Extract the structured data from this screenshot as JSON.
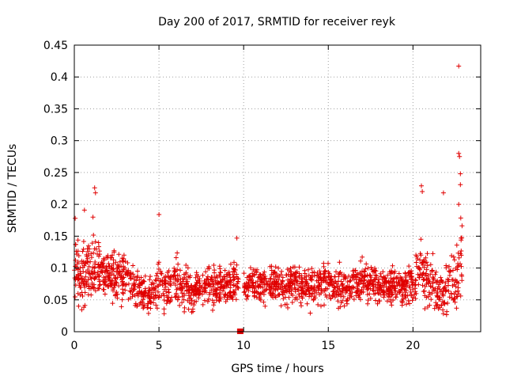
{
  "chart_data": {
    "type": "scatter",
    "title": "Day 200 of 2017, SRMTID for receiver reyk",
    "xlabel": "GPS time / hours",
    "ylabel": "SRMTID / TECUs",
    "xlim": [
      0,
      24
    ],
    "ylim": [
      0,
      0.45
    ],
    "xticks": [
      0,
      5,
      10,
      15,
      20
    ],
    "xtick_labels": [
      "0",
      "5",
      "10",
      "15",
      "20"
    ],
    "yticks": [
      0,
      0.05,
      0.1,
      0.15,
      0.2,
      0.25,
      0.3,
      0.35,
      0.4,
      0.45
    ],
    "ytick_labels": [
      "0",
      "0.05",
      "0.1",
      "0.15",
      "0.2",
      "0.25",
      "0.3",
      "0.35",
      "0.4",
      "0.45"
    ],
    "grid": true,
    "marker": "plus",
    "color": "#e00000",
    "gap_marker": {
      "x": 9.8,
      "y": 0
    },
    "outliers": [
      {
        "x": 22.7,
        "y": 0.417
      },
      {
        "x": 22.7,
        "y": 0.28
      },
      {
        "x": 22.75,
        "y": 0.275
      },
      {
        "x": 22.8,
        "y": 0.248
      },
      {
        "x": 22.8,
        "y": 0.231
      },
      {
        "x": 22.7,
        "y": 0.2
      },
      {
        "x": 20.5,
        "y": 0.229
      },
      {
        "x": 20.55,
        "y": 0.22
      },
      {
        "x": 1.2,
        "y": 0.226
      },
      {
        "x": 1.25,
        "y": 0.218
      },
      {
        "x": 21.8,
        "y": 0.218
      },
      {
        "x": 5.0,
        "y": 0.184
      },
      {
        "x": 0.6,
        "y": 0.191
      },
      {
        "x": 9.6,
        "y": 0.147
      },
      {
        "x": 0.05,
        "y": 0.178
      },
      {
        "x": 1.1,
        "y": 0.18
      }
    ],
    "envelope": {
      "hours": [
        0,
        0.5,
        1,
        1.5,
        2,
        2.5,
        3,
        3.5,
        4,
        4.5,
        5,
        5.5,
        6,
        6.5,
        7,
        7.5,
        8,
        8.5,
        9,
        9.5,
        9.8,
        10.1,
        10.5,
        11,
        11.5,
        12,
        12.5,
        13,
        13.5,
        14,
        14.5,
        15,
        15.5,
        16,
        16.5,
        17,
        17.5,
        18,
        18.5,
        19,
        19.5,
        20,
        20.5,
        21,
        21.5,
        22,
        22.5,
        22.9
      ],
      "mean": [
        0.1,
        0.085,
        0.095,
        0.1,
        0.09,
        0.085,
        0.085,
        0.075,
        0.06,
        0.06,
        0.075,
        0.07,
        0.08,
        0.065,
        0.06,
        0.07,
        0.075,
        0.07,
        0.075,
        0.08,
        0.08,
        0.065,
        0.075,
        0.07,
        0.075,
        0.075,
        0.07,
        0.08,
        0.07,
        0.07,
        0.075,
        0.08,
        0.07,
        0.07,
        0.075,
        0.075,
        0.08,
        0.075,
        0.07,
        0.075,
        0.07,
        0.075,
        0.1,
        0.08,
        0.06,
        0.06,
        0.08,
        0.12
      ],
      "spread": [
        0.04,
        0.04,
        0.05,
        0.035,
        0.03,
        0.03,
        0.03,
        0.03,
        0.025,
        0.025,
        0.03,
        0.03,
        0.03,
        0.025,
        0.025,
        0.025,
        0.025,
        0.025,
        0.025,
        0.025,
        0.025,
        0.02,
        0.025,
        0.025,
        0.025,
        0.025,
        0.025,
        0.025,
        0.025,
        0.025,
        0.025,
        0.025,
        0.025,
        0.025,
        0.025,
        0.025,
        0.025,
        0.025,
        0.025,
        0.025,
        0.025,
        0.025,
        0.045,
        0.035,
        0.03,
        0.035,
        0.045,
        0.06
      ]
    },
    "samples": 1900
  }
}
